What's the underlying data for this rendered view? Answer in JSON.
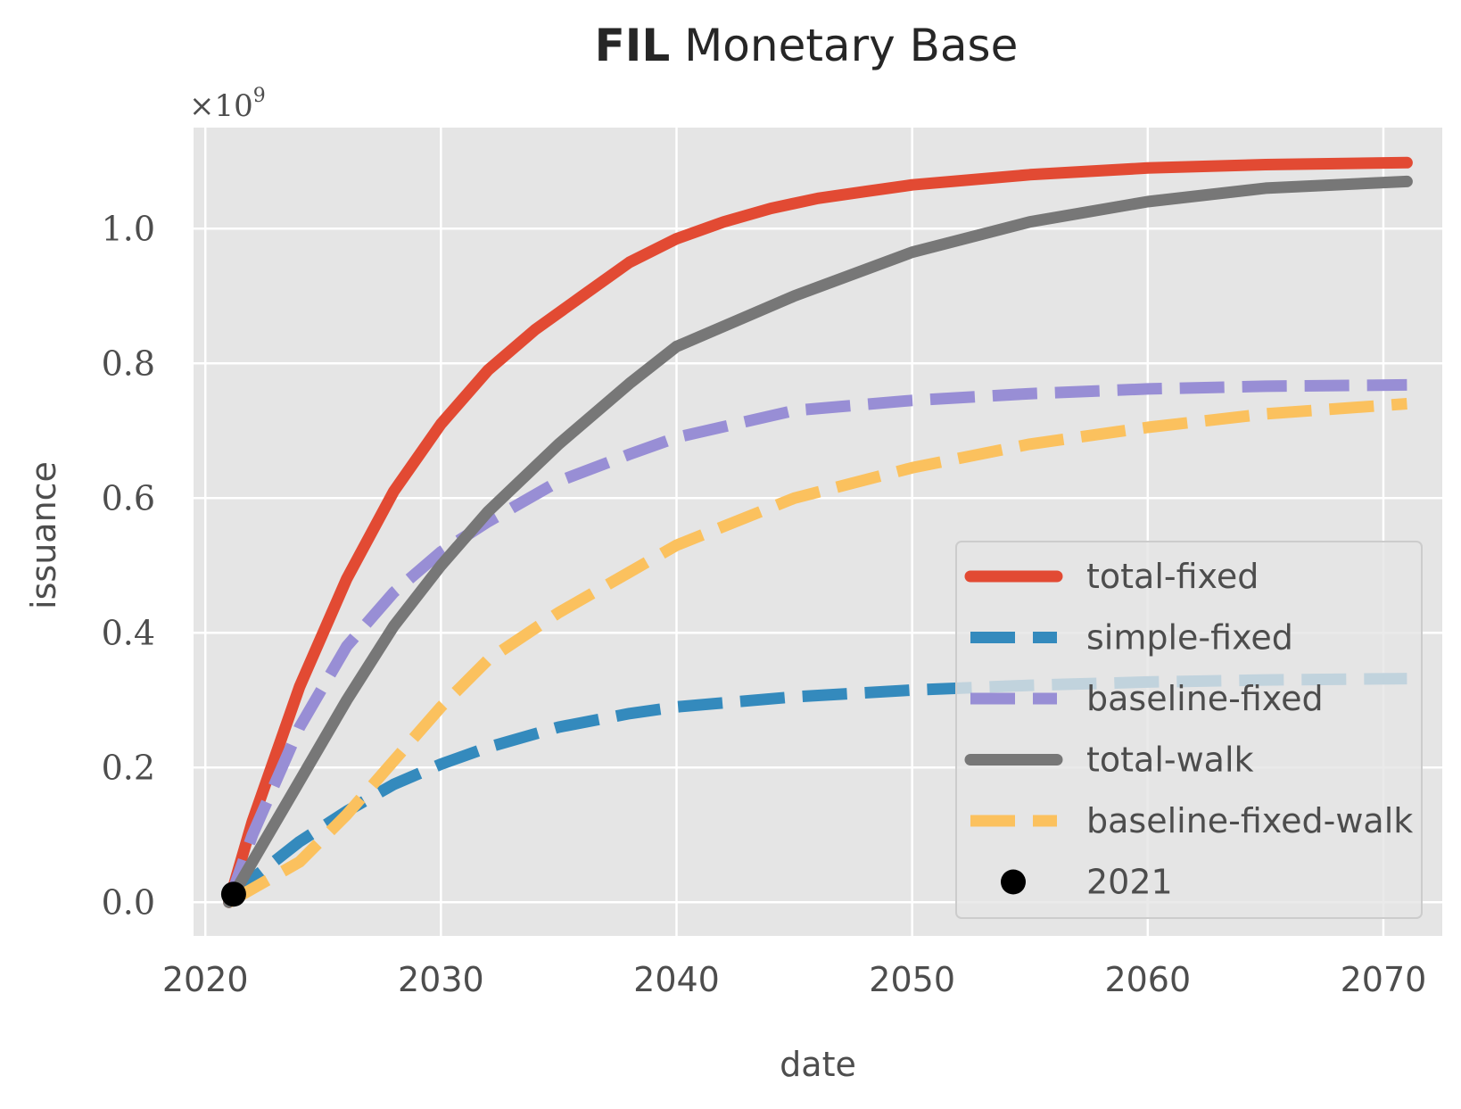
{
  "chart_data": {
    "type": "line",
    "title_bold": "FIL",
    "title_rest": " Monetary Base",
    "xlabel": "date",
    "ylabel": "issuance",
    "y_multiplier": "×10",
    "y_multiplier_exp": "9",
    "xlim": [
      2019.5,
      2072.5
    ],
    "ylim": [
      -0.05,
      1.15
    ],
    "xticks": [
      2020,
      2030,
      2040,
      2050,
      2060,
      2070
    ],
    "xtick_labels": [
      "2020",
      "2030",
      "2040",
      "2050",
      "2060",
      "2070"
    ],
    "yticks": [
      0.0,
      0.2,
      0.4,
      0.6,
      0.8,
      1.0
    ],
    "ytick_labels": [
      "0.0",
      "0.2",
      "0.4",
      "0.6",
      "0.8",
      "1.0"
    ],
    "grid": true,
    "legend_position": "lower-right",
    "background": "#e5e5e5",
    "series": [
      {
        "name": "total-fixed",
        "color": "#e24a33",
        "style": "solid",
        "x": [
          2021,
          2022,
          2024,
          2026,
          2028,
          2030,
          2032,
          2034,
          2036,
          2038,
          2040,
          2042,
          2044,
          2046,
          2048,
          2050,
          2055,
          2060,
          2065,
          2071
        ],
        "y": [
          0.0,
          0.12,
          0.32,
          0.48,
          0.61,
          0.71,
          0.79,
          0.85,
          0.9,
          0.95,
          0.985,
          1.01,
          1.03,
          1.045,
          1.055,
          1.065,
          1.08,
          1.09,
          1.095,
          1.098
        ]
      },
      {
        "name": "simple-fixed",
        "color": "#348abd",
        "style": "dashed",
        "x": [
          2021,
          2022,
          2024,
          2026,
          2028,
          2030,
          2032,
          2035,
          2038,
          2040,
          2045,
          2050,
          2055,
          2060,
          2065,
          2071
        ],
        "y": [
          0.0,
          0.035,
          0.09,
          0.135,
          0.175,
          0.205,
          0.23,
          0.26,
          0.28,
          0.29,
          0.305,
          0.315,
          0.322,
          0.327,
          0.33,
          0.332
        ]
      },
      {
        "name": "baseline-fixed",
        "color": "#988ed5",
        "style": "dashed",
        "x": [
          2021,
          2022,
          2024,
          2026,
          2028,
          2030,
          2032,
          2035,
          2038,
          2040,
          2045,
          2050,
          2055,
          2060,
          2065,
          2071
        ],
        "y": [
          0.0,
          0.1,
          0.26,
          0.38,
          0.46,
          0.52,
          0.565,
          0.625,
          0.665,
          0.69,
          0.73,
          0.745,
          0.755,
          0.762,
          0.766,
          0.768
        ]
      },
      {
        "name": "total-walk",
        "color": "#777777",
        "style": "solid",
        "x": [
          2021,
          2022,
          2024,
          2026,
          2028,
          2030,
          2032,
          2035,
          2038,
          2040,
          2045,
          2050,
          2055,
          2060,
          2065,
          2071
        ],
        "y": [
          0.0,
          0.06,
          0.18,
          0.3,
          0.41,
          0.5,
          0.58,
          0.68,
          0.77,
          0.825,
          0.9,
          0.965,
          1.01,
          1.04,
          1.06,
          1.07
        ]
      },
      {
        "name": "baseline-fixed-walk",
        "color": "#fbc15e",
        "style": "dashed",
        "x": [
          2021,
          2022,
          2024,
          2026,
          2028,
          2030,
          2032,
          2035,
          2038,
          2040,
          2045,
          2050,
          2055,
          2060,
          2065,
          2071
        ],
        "y": [
          0.0,
          0.02,
          0.06,
          0.13,
          0.21,
          0.29,
          0.36,
          0.43,
          0.49,
          0.53,
          0.6,
          0.645,
          0.68,
          0.705,
          0.725,
          0.74
        ]
      }
    ],
    "points": [
      {
        "name": "2021",
        "color": "#000000",
        "x": 2021.2,
        "y": 0.012
      }
    ]
  }
}
